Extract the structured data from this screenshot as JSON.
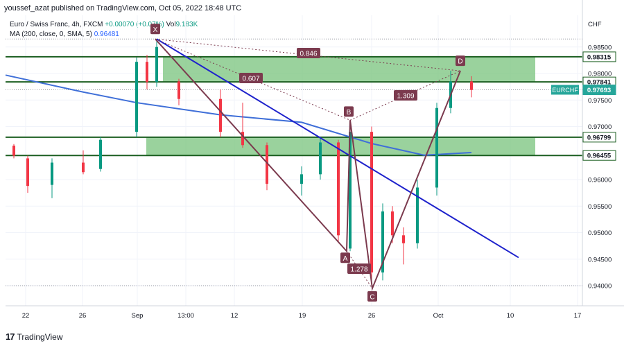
{
  "header": {
    "publisher": "youssef_azat published on TradingView.com, Oct 05, 2022 18:48 UTC"
  },
  "legend": {
    "symbol": "Euro / Swiss Franc, 4h, FXCM",
    "change": "+0.00070 (+0.07%)",
    "vol_label": "Vol",
    "vol_value": "9.183K",
    "ma_label": "MA (200, close, 0, SMA, 5)",
    "ma_value": "0.96481"
  },
  "footer": {
    "brand": "TradingView"
  },
  "colors": {
    "up": "#089981",
    "down": "#f23645",
    "zone_fill": "#81c784",
    "zone_line": "#1b5e20",
    "trend": "#1e22cc",
    "ma": "#3f6fd8",
    "pattern": "#7b3a4e"
  },
  "chart_data": {
    "type": "candlestick",
    "instrument": "EURCHF",
    "currency_label": "CHF",
    "ylim": [
      0.9365,
      0.9893
    ],
    "x_ticks": [
      "22",
      "26",
      "Sep",
      "13:00",
      "12",
      "19",
      "26",
      "Oct",
      "10",
      "17"
    ],
    "y_ticks": [
      "0.98500",
      "0.98000",
      "0.97500",
      "0.97000",
      "0.96000",
      "0.95500",
      "0.95000",
      "0.94500",
      "0.94000"
    ],
    "price_labels": [
      {
        "text": "0.98315",
        "value": 0.98315
      },
      {
        "text": "0.97841",
        "value": 0.97841
      },
      {
        "text": "0.97693",
        "value": 0.97693,
        "ticker": "EURCHF"
      },
      {
        "text": "0.96799",
        "value": 0.96799
      },
      {
        "text": "0.96455",
        "value": 0.96455
      }
    ],
    "zones": [
      {
        "top": 0.98315,
        "bottom": 0.97841
      },
      {
        "top": 0.96799,
        "bottom": 0.96455
      }
    ],
    "harmonic": {
      "points": [
        {
          "label": "X",
          "price": 0.9865
        },
        {
          "label": "A",
          "price": 0.9465
        },
        {
          "label": "B",
          "price": 0.9712
        },
        {
          "label": "C",
          "price": 0.9395
        },
        {
          "label": "D",
          "price": 0.9805
        }
      ],
      "ratios": [
        "0.846",
        "0.607",
        "1.309",
        "1.278"
      ]
    },
    "ma_series": {
      "name": "MA (200, close, 0, SMA, 5)",
      "points": [
        [
          "Aug 17",
          0.9797
        ],
        [
          "Aug 26",
          0.9765
        ],
        [
          "Sep 01",
          0.9745
        ],
        [
          "Sep 12",
          0.9722
        ],
        [
          "Sep 19",
          0.9708
        ],
        [
          "Sep 26",
          0.9668
        ],
        [
          "Oct 01",
          0.9646
        ],
        [
          "Oct 05",
          0.9651
        ]
      ]
    },
    "candles_ohlc": [
      [
        "Aug 19",
        0.9664,
        0.9667,
        0.964,
        0.9645
      ],
      [
        "Aug 22",
        0.964,
        0.9645,
        0.9575,
        0.9588
      ],
      [
        "Aug 24",
        0.959,
        0.964,
        0.9565,
        0.9632
      ],
      [
        "Aug 26",
        0.9632,
        0.9655,
        0.961,
        0.9614
      ],
      [
        "Aug 29",
        0.962,
        0.968,
        0.9615,
        0.9675
      ],
      [
        "Sep 01",
        0.969,
        0.983,
        0.968,
        0.9822
      ],
      [
        "Sep 02",
        0.9822,
        0.9835,
        0.977,
        0.9784
      ],
      [
        "Sep 05",
        0.9784,
        0.9865,
        0.9775,
        0.985
      ],
      [
        "Sep 07",
        0.9785,
        0.979,
        0.974,
        0.9752
      ],
      [
        "Sep 12",
        0.9752,
        0.977,
        0.968,
        0.969
      ],
      [
        "Sep 14",
        0.969,
        0.9745,
        0.966,
        0.9665
      ],
      [
        "Sep 16",
        0.9665,
        0.967,
        0.958,
        0.9592
      ],
      [
        "Sep 19",
        0.9592,
        0.9625,
        0.957,
        0.961
      ],
      [
        "Sep 21",
        0.961,
        0.968,
        0.96,
        0.967
      ],
      [
        "Sep 22",
        0.967,
        0.9675,
        0.948,
        0.9495
      ],
      [
        "Sep 23",
        0.947,
        0.9705,
        0.9465,
        0.969
      ],
      [
        "Sep 26",
        0.969,
        0.97,
        0.94,
        0.9425
      ],
      [
        "Sep 27",
        0.9425,
        0.9555,
        0.941,
        0.954
      ],
      [
        "Sep 28",
        0.954,
        0.955,
        0.948,
        0.9495
      ],
      [
        "Sep 29",
        0.9495,
        0.951,
        0.944,
        0.948
      ],
      [
        "Sep 30",
        0.948,
        0.96,
        0.947,
        0.9585
      ],
      [
        "Oct 03",
        0.9585,
        0.9745,
        0.957,
        0.9735
      ],
      [
        "Oct 04",
        0.9735,
        0.9805,
        0.9725,
        0.9785
      ],
      [
        "Oct 05",
        0.9785,
        0.9795,
        0.9755,
        0.9769
      ]
    ]
  }
}
